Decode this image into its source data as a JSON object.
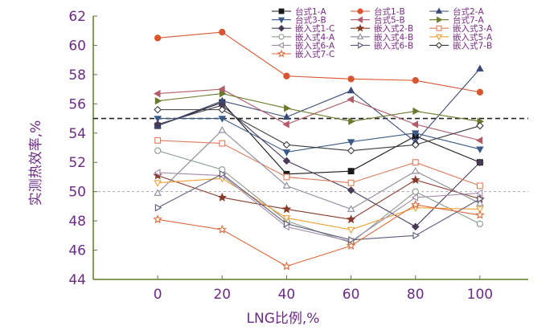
{
  "chart_data": {
    "type": "line",
    "xlabel": "LNG比例,%",
    "ylabel": "实测热效率,%",
    "x": [
      0,
      20,
      40,
      60,
      80,
      100
    ],
    "xlim": [
      -20,
      115
    ],
    "ylim": [
      44,
      62
    ],
    "xticks": [
      "0",
      "20",
      "40",
      "60",
      "80",
      "100"
    ],
    "yticks": [
      "44",
      "46",
      "48",
      "50",
      "52",
      "54",
      "56",
      "58",
      "60",
      "62"
    ],
    "grid": false,
    "legend_position": "top-right",
    "reference_lines": [
      {
        "y": 55,
        "style": "dashed",
        "color": "#222222"
      },
      {
        "y": 50,
        "style": "dashed",
        "color": "#aaaaaa"
      }
    ],
    "series": [
      {
        "name": "台式1-A",
        "color": "#1a1a1a",
        "marker": "square-filled",
        "values": [
          54.5,
          56.1,
          51.2,
          51.4,
          53.8,
          52.0
        ]
      },
      {
        "name": "台式1-B",
        "color": "#d9552f",
        "marker": "circle-filled",
        "values": [
          60.5,
          60.9,
          57.9,
          57.7,
          57.6,
          56.8
        ]
      },
      {
        "name": "台式2-A",
        "color": "#3a4a78",
        "marker": "triangle-filled",
        "values": [
          54.5,
          56.2,
          55.1,
          56.9,
          53.4,
          58.4
        ]
      },
      {
        "name": "台式3-B",
        "color": "#3a5a88",
        "marker": "triangle-down-filled",
        "values": [
          55.0,
          55.0,
          52.7,
          53.4,
          54.0,
          52.9
        ]
      },
      {
        "name": "台式5-B",
        "color": "#b45a6a",
        "marker": "triangle-left-filled",
        "values": [
          56.7,
          57.0,
          54.6,
          56.3,
          54.6,
          53.5
        ]
      },
      {
        "name": "台式7-A",
        "color": "#6a7a2a",
        "marker": "triangle-right-filled",
        "values": [
          56.2,
          56.7,
          55.7,
          54.8,
          55.5,
          54.8
        ]
      },
      {
        "name": "嵌入式1-C",
        "color": "#4a3a5a",
        "marker": "diamond-filled",
        "values": [
          54.6,
          55.9,
          52.1,
          50.1,
          47.6,
          52.0
        ]
      },
      {
        "name": "嵌入式2-B",
        "color": "#8a3a2a",
        "marker": "star-filled",
        "values": [
          51.1,
          49.6,
          48.8,
          48.1,
          50.8,
          49.5
        ]
      },
      {
        "name": "嵌入式3-A",
        "color": "#e07a5a",
        "marker": "square-open",
        "values": [
          53.5,
          53.3,
          51.0,
          50.6,
          52.0,
          50.4
        ]
      },
      {
        "name": "嵌入式4-A",
        "color": "#8a9a8a",
        "marker": "circle-open",
        "values": [
          52.8,
          51.5,
          48.0,
          46.5,
          50.0,
          47.8
        ]
      },
      {
        "name": "嵌入式4-B",
        "color": "#8a8a9a",
        "marker": "triangle-open",
        "values": [
          49.9,
          54.2,
          50.4,
          48.8,
          51.4,
          49.2
        ]
      },
      {
        "name": "嵌入式5-A",
        "color": "#f0a030",
        "marker": "triangle-down-open",
        "values": [
          50.6,
          50.9,
          48.2,
          47.4,
          48.9,
          48.8
        ]
      },
      {
        "name": "嵌入式6-A",
        "color": "#a08aa8",
        "marker": "triangle-left-open",
        "values": [
          51.3,
          51.1,
          47.6,
          46.6,
          49.6,
          49.9
        ]
      },
      {
        "name": "嵌入式6-B",
        "color": "#5a5a7a",
        "marker": "triangle-right-open",
        "values": [
          48.9,
          51.2,
          47.8,
          46.7,
          47.0,
          49.5
        ]
      },
      {
        "name": "嵌入式7-B",
        "color": "#3a3a3a",
        "marker": "diamond-open",
        "values": [
          55.6,
          55.6,
          53.2,
          52.8,
          53.2,
          54.5
        ]
      },
      {
        "name": "嵌入式7-C",
        "color": "#e06a3a",
        "marker": "star-open",
        "values": [
          48.1,
          47.4,
          44.9,
          46.3,
          49.1,
          48.4
        ]
      }
    ]
  }
}
